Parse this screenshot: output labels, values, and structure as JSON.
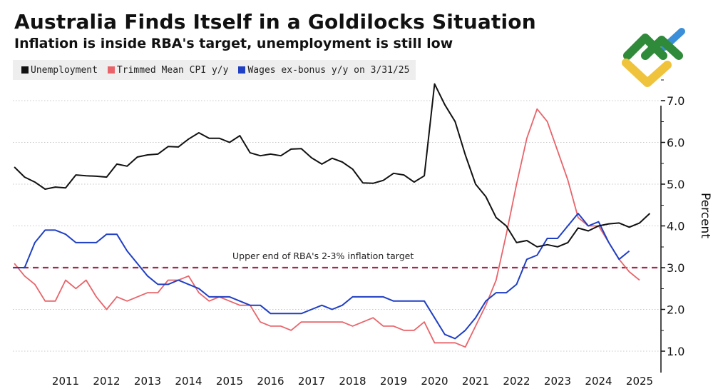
{
  "header": {
    "title": "Australia Finds Itself in a Goldilocks Situation",
    "subtitle": "Inflation is inside RBA's target, unemployment is still low"
  },
  "chart_data": {
    "type": "line",
    "title": "Australia Finds Itself in a Goldilocks Situation",
    "subtitle": "Inflation is inside RBA's target, unemployment is still low",
    "xlabel": "",
    "ylabel": "Percent",
    "x_start": 2009.75,
    "x_step": 0.25,
    "x_ticks": [
      "2011",
      "2012",
      "2013",
      "2014",
      "2015",
      "2016",
      "2017",
      "2018",
      "2019",
      "2020",
      "2021",
      "2022",
      "2023",
      "2024",
      "2025"
    ],
    "y_ticks": [
      "1.0",
      "2.0",
      "3.0",
      "4.0",
      "5.0",
      "6.0",
      "7.0"
    ],
    "ylim": [
      0.6,
      7.5
    ],
    "grid": true,
    "legend_placement": "top-left",
    "series": [
      {
        "name": "Unemployment",
        "color": "#111111",
        "values": [
          5.41,
          5.17,
          5.05,
          4.88,
          4.93,
          4.91,
          5.22,
          5.2,
          5.19,
          5.17,
          5.48,
          5.43,
          5.65,
          5.7,
          5.72,
          5.9,
          5.89,
          6.08,
          6.23,
          6.1,
          6.1,
          6.0,
          6.16,
          5.75,
          5.68,
          5.72,
          5.68,
          5.84,
          5.85,
          5.63,
          5.48,
          5.62,
          5.53,
          5.36,
          5.03,
          5.02,
          5.09,
          5.26,
          5.22,
          5.05,
          5.2,
          7.4,
          6.9,
          6.5,
          5.7,
          5.0,
          4.7,
          4.2,
          4.0,
          3.6,
          3.65,
          3.5,
          3.55,
          3.5,
          3.6,
          3.95,
          3.88,
          4.0,
          4.05,
          4.07,
          3.97,
          4.07,
          4.3
        ]
      },
      {
        "name": "Trimmed Mean CPI y/y",
        "color": "#e8646a",
        "values": [
          3.1,
          2.8,
          2.6,
          2.2,
          2.2,
          2.7,
          2.5,
          2.7,
          2.3,
          2.0,
          2.3,
          2.2,
          2.3,
          2.4,
          2.4,
          2.7,
          2.7,
          2.8,
          2.4,
          2.2,
          2.3,
          2.2,
          2.1,
          2.1,
          1.7,
          1.6,
          1.6,
          1.5,
          1.7,
          1.7,
          1.7,
          1.7,
          1.7,
          1.6,
          1.7,
          1.8,
          1.6,
          1.6,
          1.5,
          1.5,
          1.7,
          1.2,
          1.2,
          1.2,
          1.1,
          1.6,
          2.1,
          2.7,
          3.8,
          5.0,
          6.1,
          6.8,
          6.5,
          5.8,
          5.1,
          4.2,
          4.0,
          4.0,
          3.6,
          3.2,
          2.9,
          2.7
        ]
      },
      {
        "name": "Wages ex-bonus y/y on 3/31/25",
        "color": "#1f3fc4",
        "values": [
          3.0,
          3.0,
          3.6,
          3.9,
          3.9,
          3.8,
          3.6,
          3.6,
          3.6,
          3.8,
          3.8,
          3.4,
          3.1,
          2.8,
          2.6,
          2.6,
          2.7,
          2.6,
          2.5,
          2.3,
          2.3,
          2.3,
          2.2,
          2.1,
          2.1,
          1.9,
          1.9,
          1.9,
          1.9,
          2.0,
          2.1,
          2.0,
          2.1,
          2.3,
          2.3,
          2.3,
          2.3,
          2.2,
          2.2,
          2.2,
          2.2,
          1.8,
          1.4,
          1.3,
          1.5,
          1.8,
          2.2,
          2.4,
          2.4,
          2.6,
          3.2,
          3.3,
          3.7,
          3.7,
          4.0,
          4.3,
          4.0,
          4.1,
          3.6,
          3.2,
          3.4
        ]
      }
    ],
    "annotations": [
      {
        "text": "Upper end of RBA's 2-3% inflation target",
        "y": 3.0,
        "color": "#a8284a"
      }
    ]
  },
  "legend": [
    {
      "label": "Unemployment",
      "color": "#111111"
    },
    {
      "label": "Trimmed Mean CPI y/y",
      "color": "#e8646a"
    },
    {
      "label": "Wages ex-bonus y/y on 3/31/25",
      "color": "#1f3fc4"
    }
  ]
}
